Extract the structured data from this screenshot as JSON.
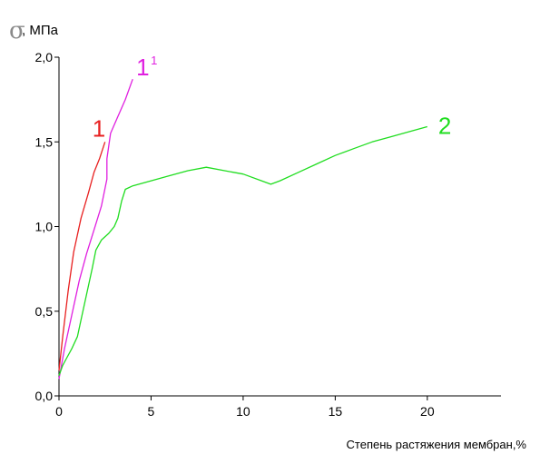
{
  "chart_data": {
    "type": "line",
    "ylabel_symbol": "σ",
    "ylabel_unit": ", МПа",
    "xlabel": "Степень растяжения мембран,%",
    "xlim": [
      0,
      24
    ],
    "ylim": [
      0,
      2.0
    ],
    "xticks": [
      0,
      5,
      10,
      15,
      20
    ],
    "yticks": [
      0.0,
      0.5,
      1.0,
      1.5,
      2.0
    ],
    "xtick_labels": [
      "0",
      "5",
      "10",
      "15",
      "20"
    ],
    "ytick_labels": [
      "0,0",
      "0,5",
      "1,0",
      "1,5",
      "2,0"
    ],
    "grid": false,
    "series": [
      {
        "name": "1",
        "color": "#e82020",
        "x": [
          0.0,
          0.2,
          0.5,
          0.8,
          1.2,
          1.6,
          1.9,
          2.2,
          2.5
        ],
        "y": [
          0.15,
          0.35,
          0.62,
          0.85,
          1.05,
          1.2,
          1.32,
          1.4,
          1.5
        ]
      },
      {
        "name": "1",
        "sup": "1",
        "color": "#e020e0",
        "x": [
          0.0,
          0.3,
          0.7,
          1.1,
          1.5,
          1.9,
          2.3,
          2.6,
          2.6,
          2.8,
          3.2,
          3.6,
          4.0
        ],
        "y": [
          0.1,
          0.28,
          0.48,
          0.68,
          0.84,
          0.98,
          1.12,
          1.28,
          1.4,
          1.55,
          1.65,
          1.75,
          1.87
        ]
      },
      {
        "name": "2",
        "color": "#20dd20",
        "x": [
          0.0,
          0.2,
          0.4,
          0.7,
          1.0,
          1.2,
          1.5,
          1.8,
          2.0,
          2.3,
          2.7,
          3.0,
          3.2,
          3.4,
          3.6,
          4.0,
          5.0,
          6.0,
          7.0,
          8.0,
          9.0,
          10.0,
          11.0,
          11.5,
          12.0,
          13.0,
          14.0,
          15.0,
          16.0,
          17.0,
          18.0,
          19.0,
          20.0
        ],
        "y": [
          0.12,
          0.18,
          0.22,
          0.28,
          0.35,
          0.45,
          0.6,
          0.75,
          0.86,
          0.92,
          0.96,
          1.0,
          1.05,
          1.15,
          1.22,
          1.24,
          1.27,
          1.3,
          1.33,
          1.35,
          1.33,
          1.31,
          1.27,
          1.25,
          1.27,
          1.32,
          1.37,
          1.42,
          1.46,
          1.5,
          1.53,
          1.56,
          1.59
        ]
      }
    ]
  }
}
